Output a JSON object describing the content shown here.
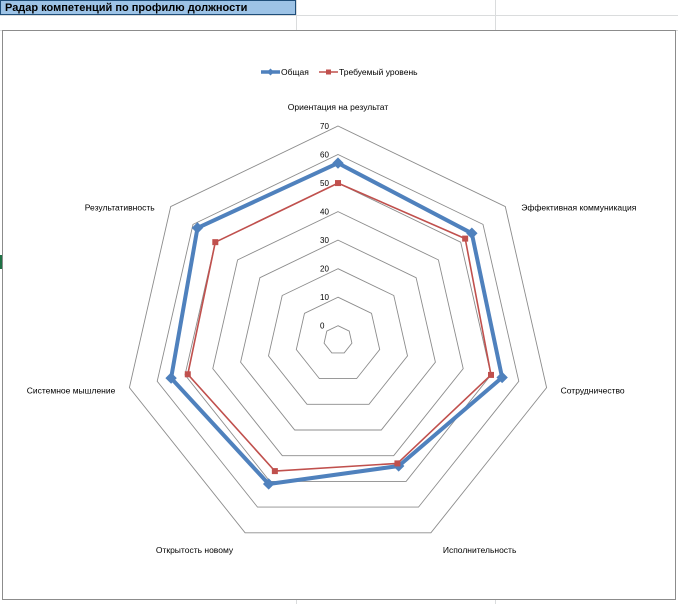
{
  "sheet": {
    "title_cell": "Радар компетенций по профилю должности"
  },
  "chart_data": {
    "type": "radar",
    "categories": [
      "Ориентация на результат",
      "Эффективная коммуникация",
      "Сотрудничество",
      "Исполнительность",
      "Открытость новому",
      "Системное мышление",
      "Результативность"
    ],
    "series": [
      {
        "name": "Общая",
        "values": [
          57,
          55,
          54,
          44,
          51,
          55,
          58
        ],
        "color": "#4f81bd",
        "marker": "diamond"
      },
      {
        "name": "Требуемый уровень",
        "values": [
          50,
          52,
          50,
          43,
          46,
          49,
          50
        ],
        "color": "#c0504d",
        "marker": "square"
      }
    ],
    "rlim": [
      0,
      70
    ],
    "ticks": [
      "0",
      "10",
      "20",
      "30",
      "40",
      "50",
      "60",
      "70"
    ],
    "legend_position": "top",
    "grid": true
  }
}
